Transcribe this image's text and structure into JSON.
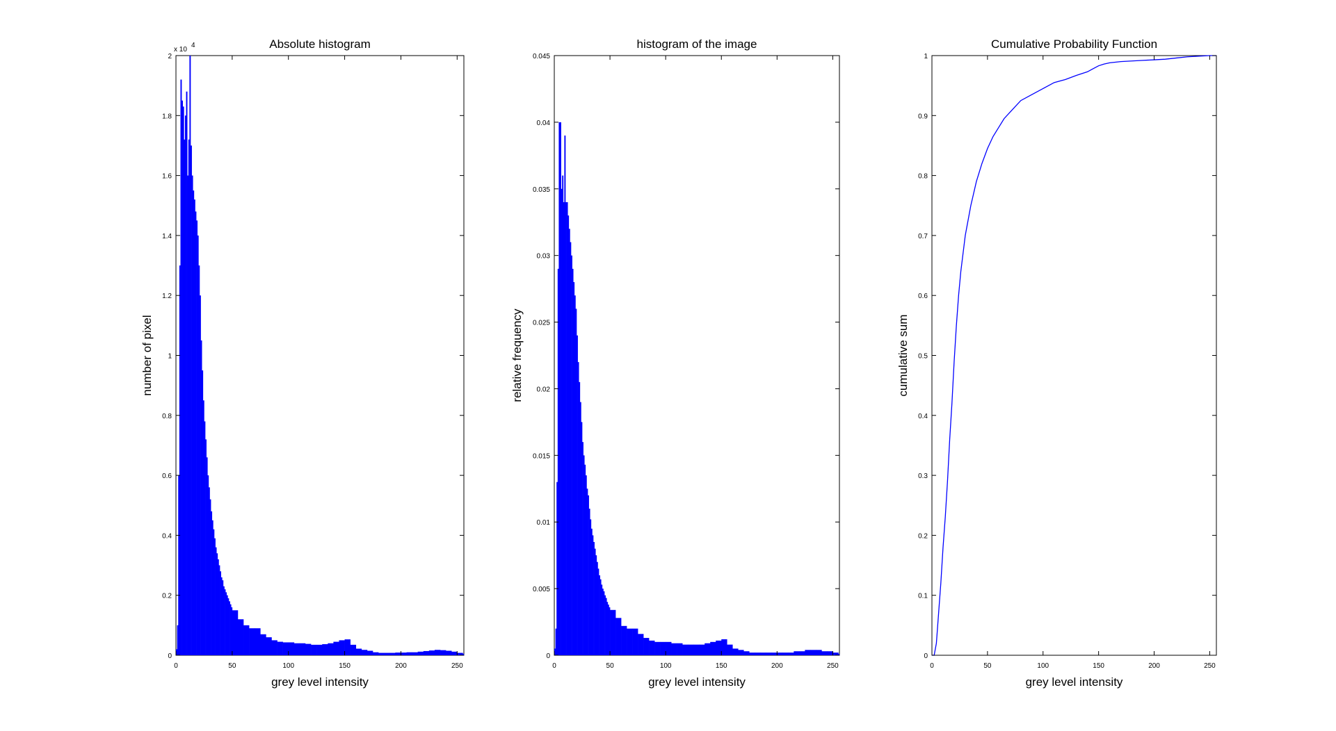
{
  "figure": {
    "background": "#ffffff",
    "series_color": "#0000ff"
  },
  "chart_data": [
    {
      "type": "bar",
      "title": "Absolute histogram",
      "xlabel": "grey level intensity",
      "ylabel": "number of pixel",
      "xlim": [
        0,
        256
      ],
      "ylim": [
        0,
        2
      ],
      "y_multiplier_label": "x 10",
      "y_multiplier_exponent": "4",
      "x_ticks": [
        "0",
        "50",
        "100",
        "150",
        "200",
        "250"
      ],
      "y_ticks": [
        "0",
        "0.2",
        "0.4",
        "0.6",
        "0.8",
        "1",
        "1.2",
        "1.4",
        "1.6",
        "1.8",
        "2"
      ],
      "grid": false,
      "series": [
        {
          "x": [
            0,
            1,
            2,
            3,
            4,
            5,
            6,
            7,
            8,
            9,
            10,
            11,
            12,
            13,
            14,
            15,
            16,
            17,
            18,
            19,
            20,
            21,
            22,
            23,
            24,
            25,
            26,
            27,
            28,
            29,
            30,
            31,
            32,
            33,
            34,
            35,
            36,
            37,
            38,
            39,
            40,
            41,
            42,
            43,
            44,
            45,
            46,
            47,
            48,
            49,
            50,
            55,
            60,
            65,
            70,
            75,
            80,
            85,
            90,
            95,
            100,
            105,
            110,
            115,
            120,
            125,
            130,
            135,
            140,
            145,
            150,
            155,
            160,
            165,
            170,
            175,
            180,
            185,
            190,
            195,
            200,
            205,
            210,
            215,
            220,
            225,
            230,
            235,
            240,
            245,
            250,
            255
          ],
          "values": [
            0.02,
            0.1,
            0.6,
            1.3,
            1.92,
            1.85,
            1.83,
            1.72,
            1.8,
            1.88,
            1.6,
            1.72,
            2.0,
            1.7,
            1.6,
            1.55,
            1.52,
            1.48,
            1.45,
            1.4,
            1.3,
            1.2,
            1.05,
            0.95,
            0.85,
            0.78,
            0.72,
            0.66,
            0.6,
            0.56,
            0.52,
            0.48,
            0.45,
            0.42,
            0.39,
            0.36,
            0.34,
            0.32,
            0.3,
            0.28,
            0.26,
            0.25,
            0.23,
            0.22,
            0.21,
            0.2,
            0.19,
            0.18,
            0.17,
            0.16,
            0.15,
            0.12,
            0.1,
            0.09,
            0.09,
            0.07,
            0.06,
            0.05,
            0.045,
            0.043,
            0.043,
            0.04,
            0.04,
            0.038,
            0.035,
            0.035,
            0.037,
            0.04,
            0.045,
            0.05,
            0.053,
            0.035,
            0.022,
            0.018,
            0.015,
            0.01,
            0.008,
            0.008,
            0.008,
            0.009,
            0.009,
            0.01,
            0.01,
            0.012,
            0.014,
            0.016,
            0.018,
            0.017,
            0.015,
            0.012,
            0.008,
            0.005
          ]
        }
      ]
    },
    {
      "type": "bar",
      "title": "histogram of the image",
      "xlabel": "grey level intensity",
      "ylabel": "relative frequency",
      "xlim": [
        0,
        256
      ],
      "ylim": [
        0,
        0.045
      ],
      "x_ticks": [
        "0",
        "50",
        "100",
        "150",
        "200",
        "250"
      ],
      "y_ticks": [
        "0",
        "0.005",
        "0.01",
        "0.015",
        "0.02",
        "0.025",
        "0.03",
        "0.035",
        "0.04",
        "0.045"
      ],
      "grid": false,
      "series": [
        {
          "x": [
            0,
            1,
            2,
            3,
            4,
            5,
            6,
            7,
            8,
            9,
            10,
            11,
            12,
            13,
            14,
            15,
            16,
            17,
            18,
            19,
            20,
            21,
            22,
            23,
            24,
            25,
            26,
            27,
            28,
            29,
            30,
            31,
            32,
            33,
            34,
            35,
            36,
            37,
            38,
            39,
            40,
            41,
            42,
            43,
            44,
            45,
            46,
            47,
            48,
            49,
            50,
            55,
            60,
            65,
            70,
            75,
            80,
            85,
            90,
            95,
            100,
            105,
            110,
            115,
            120,
            125,
            130,
            135,
            140,
            145,
            150,
            155,
            160,
            165,
            170,
            175,
            180,
            185,
            190,
            195,
            200,
            205,
            210,
            215,
            220,
            225,
            230,
            235,
            240,
            245,
            250,
            255
          ],
          "values": [
            0.0005,
            0.002,
            0.013,
            0.029,
            0.04,
            0.04,
            0.035,
            0.036,
            0.034,
            0.039,
            0.034,
            0.034,
            0.033,
            0.032,
            0.031,
            0.03,
            0.029,
            0.028,
            0.027,
            0.026,
            0.024,
            0.022,
            0.0205,
            0.019,
            0.0175,
            0.016,
            0.015,
            0.0143,
            0.0135,
            0.0125,
            0.012,
            0.011,
            0.0102,
            0.0095,
            0.009,
            0.0085,
            0.008,
            0.0075,
            0.007,
            0.0065,
            0.006,
            0.0057,
            0.0053,
            0.005,
            0.0048,
            0.0045,
            0.0043,
            0.004,
            0.0038,
            0.0036,
            0.0034,
            0.0028,
            0.0022,
            0.002,
            0.002,
            0.0016,
            0.0013,
            0.0011,
            0.001,
            0.001,
            0.001,
            0.0009,
            0.0009,
            0.0008,
            0.0008,
            0.0008,
            0.0008,
            0.0009,
            0.001,
            0.0011,
            0.0012,
            0.0008,
            0.0005,
            0.0004,
            0.0003,
            0.0002,
            0.0002,
            0.0002,
            0.0002,
            0.0002,
            0.0002,
            0.0002,
            0.0002,
            0.0003,
            0.0003,
            0.0004,
            0.0004,
            0.0004,
            0.0003,
            0.0003,
            0.0002,
            0.0001
          ]
        }
      ]
    },
    {
      "type": "line",
      "title": "Cumulative Probability Function",
      "xlabel": "grey level intensity",
      "ylabel": "cumulative sum",
      "xlim": [
        0,
        256
      ],
      "ylim": [
        0,
        1
      ],
      "x_ticks": [
        "0",
        "50",
        "100",
        "150",
        "200",
        "250"
      ],
      "y_ticks": [
        "0",
        "0.1",
        "0.2",
        "0.3",
        "0.4",
        "0.5",
        "0.6",
        "0.7",
        "0.8",
        "0.9",
        "1"
      ],
      "grid": false,
      "series": [
        {
          "x": [
            0,
            2,
            4,
            6,
            8,
            10,
            12,
            14,
            16,
            18,
            20,
            22,
            24,
            26,
            28,
            30,
            35,
            40,
            45,
            50,
            55,
            60,
            65,
            70,
            75,
            80,
            90,
            100,
            110,
            120,
            130,
            140,
            145,
            150,
            155,
            160,
            170,
            180,
            190,
            200,
            210,
            220,
            230,
            240,
            250,
            256
          ],
          "y": [
            0,
            0.0,
            0.02,
            0.07,
            0.12,
            0.18,
            0.23,
            0.29,
            0.36,
            0.42,
            0.49,
            0.55,
            0.6,
            0.64,
            0.67,
            0.7,
            0.75,
            0.79,
            0.82,
            0.845,
            0.865,
            0.88,
            0.895,
            0.905,
            0.915,
            0.925,
            0.935,
            0.945,
            0.955,
            0.96,
            0.967,
            0.973,
            0.978,
            0.983,
            0.986,
            0.988,
            0.99,
            0.991,
            0.992,
            0.993,
            0.994,
            0.996,
            0.998,
            0.999,
            1.0,
            1.0
          ]
        }
      ]
    }
  ]
}
